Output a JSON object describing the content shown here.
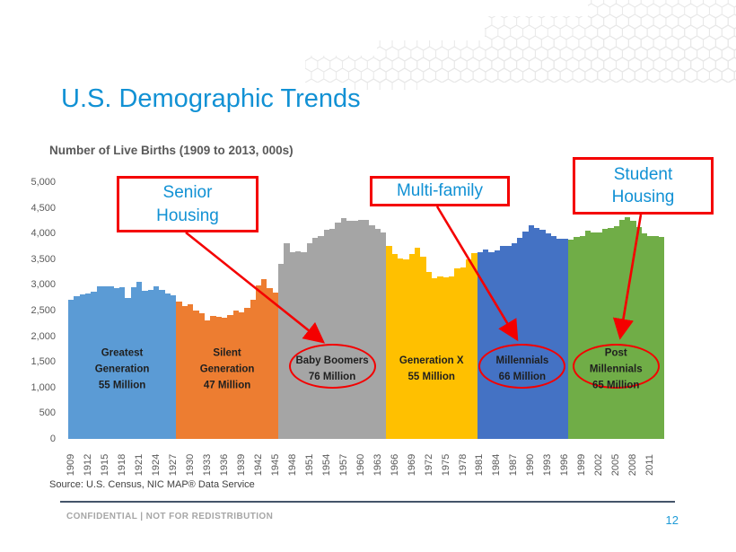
{
  "slide": {
    "title": "U.S. Demographic Trends",
    "source": "Source: U.S. Census, NIC MAP® Data Service",
    "confidential": "CONFIDENTIAL  |  NOT FOR REDISTRIBUTION",
    "page_number": "12"
  },
  "colors": {
    "accent_blue": "#1191d4",
    "callout_red": "#f40000",
    "axis_text": "#595959",
    "footer_line": "#44546a",
    "footer_text": "#a6a6a6",
    "hex_pattern": "#e8e8e8"
  },
  "callouts": [
    {
      "label": "Senior Housing",
      "label_lines": [
        "Senior",
        "Housing"
      ],
      "target": "Baby Boomers"
    },
    {
      "label": "Multi-family",
      "label_lines": [
        "Multi-family"
      ],
      "target": "Millennials"
    },
    {
      "label": "Student Housing",
      "label_lines": [
        "Student",
        "Housing"
      ],
      "target": "Post Millennials"
    }
  ],
  "chart_data": {
    "type": "bar",
    "title": "Number of Live Births (1909 to 2013, 000s)",
    "x_start_year": 1909,
    "x_end_year": 2013,
    "ylim": [
      0,
      5000
    ],
    "grid": false,
    "legend": false,
    "y_tick_labels": [
      "5,000",
      "4,500",
      "4,000",
      "3,500",
      "3,000",
      "2,500",
      "2,000",
      "1,500",
      "1,000",
      "500",
      "0"
    ],
    "x_tick_years": [
      1909,
      1912,
      1915,
      1918,
      1921,
      1924,
      1927,
      1930,
      1933,
      1936,
      1939,
      1942,
      1945,
      1948,
      1951,
      1954,
      1957,
      1960,
      1963,
      1966,
      1969,
      1972,
      1975,
      1978,
      1981,
      1984,
      1987,
      1990,
      1993,
      1996,
      1999,
      2002,
      2005,
      2008,
      2011
    ],
    "values": [
      2718,
      2777,
      2809,
      2840,
      2869,
      2966,
      2965,
      2964,
      2944,
      2948,
      2740,
      2950,
      3055,
      2882,
      2910,
      2979,
      2909,
      2839,
      2802,
      2674,
      2582,
      2618,
      2506,
      2440,
      2307,
      2396,
      2377,
      2355,
      2413,
      2496,
      2466,
      2559,
      2703,
      2989,
      3104,
      2939,
      2858,
      3411,
      3817,
      3637,
      3649,
      3632,
      3820,
      3909,
      3959,
      4071,
      4097,
      4210,
      4300,
      4255,
      4245,
      4258,
      4268,
      4167,
      4098,
      4027,
      3760,
      3606,
      3521,
      3502,
      3600,
      3731,
      3556,
      3258,
      3137,
      3160,
      3144,
      3168,
      3327,
      3333,
      3494,
      3612,
      3629,
      3681,
      3639,
      3669,
      3761,
      3757,
      3809,
      3910,
      4041,
      4158,
      4111,
      4065,
      4000,
      3953,
      3900,
      3891,
      3881,
      3942,
      3959,
      4059,
      4026,
      4022,
      4090,
      4112,
      4138,
      4266,
      4316,
      4248,
      4131,
      3999,
      3954,
      3953,
      3932
    ],
    "segments": [
      {
        "name": "Greatest Generation",
        "population": "55 Million",
        "label_lines": [
          "Greatest",
          "Generation",
          "55 Million"
        ],
        "start_year": 1909,
        "end_year": 1927,
        "color": "#5b9bd5",
        "circled": false
      },
      {
        "name": "Silent Generation",
        "population": "47 Million",
        "label_lines": [
          "Silent",
          "Generation",
          "47 Million"
        ],
        "start_year": 1928,
        "end_year": 1945,
        "color": "#ed7d31",
        "circled": false
      },
      {
        "name": "Baby Boomers",
        "population": "76 Million",
        "label_lines": [
          "Baby Boomers",
          "76 Million"
        ],
        "start_year": 1946,
        "end_year": 1964,
        "color": "#a5a5a5",
        "circled": true
      },
      {
        "name": "Generation X",
        "population": "55 Million",
        "label_lines": [
          "Generation X",
          "55 Million"
        ],
        "start_year": 1965,
        "end_year": 1980,
        "color": "#ffc000",
        "circled": false
      },
      {
        "name": "Millennials",
        "population": "66 Million",
        "label_lines": [
          "Millennials",
          "66 Million"
        ],
        "start_year": 1981,
        "end_year": 1996,
        "color": "#4472c4",
        "circled": true
      },
      {
        "name": "Post Millennials",
        "population": "65 Million",
        "label_lines": [
          "Post",
          "Millennials",
          "65 Million"
        ],
        "start_year": 1997,
        "end_year": 2013,
        "color": "#70ad47",
        "circled": true
      }
    ]
  }
}
